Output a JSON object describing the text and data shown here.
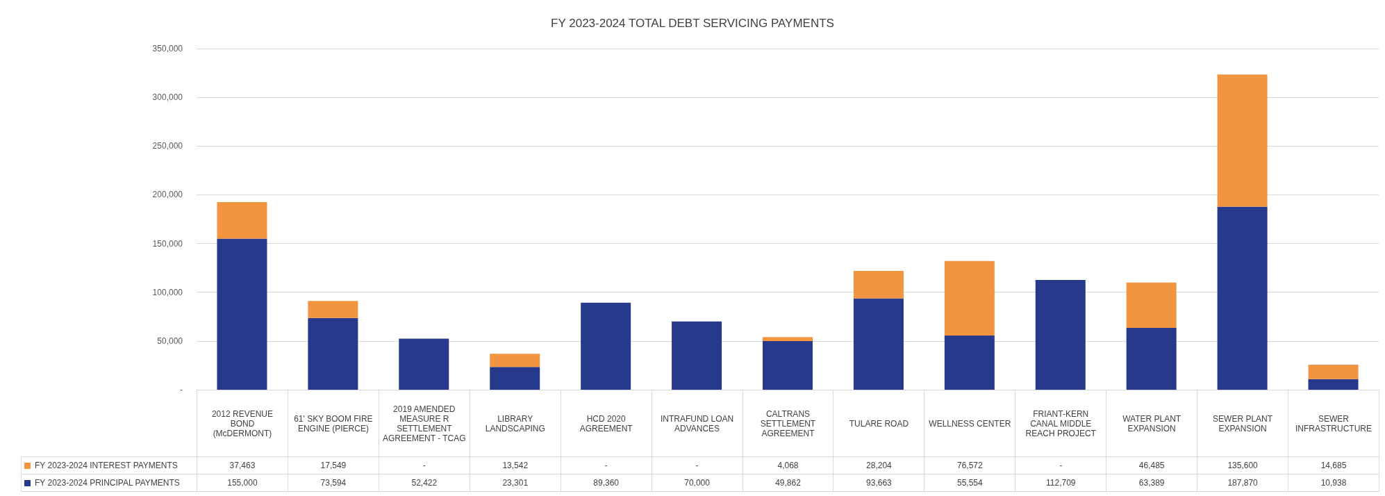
{
  "chart_data": {
    "type": "bar",
    "title": "FY 2023-2024 TOTAL DEBT SERVICING PAYMENTS",
    "categories": [
      "2012 REVENUE BOND (McDERMONT)",
      "61' SKY BOOM FIRE ENGINE (PIERCE)",
      "2019 AMENDED MEASURE R SETTLEMENT AGREEMENT - TCAG",
      "LIBRARY LANDSCAPING",
      "HCD 2020 AGREEMENT",
      "INTRAFUND LOAN ADVANCES",
      "CALTRANS SETTLEMENT AGREEMENT",
      "TULARE ROAD",
      "WELLNESS CENTER",
      "FRIANT-KERN CANAL MIDDLE REACH PROJECT",
      "WATER PLANT EXPANSION",
      "SEWER PLANT EXPANSION",
      "SEWER INFRASTRUCTURE"
    ],
    "stacked": true,
    "series": [
      {
        "name": "FY 2023-2024 PRINCIPAL PAYMENTS",
        "color": "#26398a",
        "values": [
          155000,
          73594,
          52422,
          23301,
          89360,
          70000,
          49862,
          93663,
          55554,
          112709,
          63389,
          187870,
          10938
        ],
        "value_labels": [
          "155,000",
          "73,594",
          "52,422",
          "23,301",
          "89,360",
          "70,000",
          "49,862",
          "93,663",
          "55,554",
          "112,709",
          "63,389",
          "187,870",
          "10,938"
        ]
      },
      {
        "name": "FY 2023-2024 INTEREST PAYMENTS",
        "color": "#f29541",
        "values": [
          37463,
          17549,
          0,
          13542,
          0,
          0,
          4068,
          28204,
          76572,
          0,
          46485,
          135600,
          14685
        ],
        "value_labels": [
          "37,463",
          "17,549",
          "-",
          "13,542",
          "-",
          "-",
          "4,068",
          "28,204",
          "76,572",
          "-",
          "46,485",
          "135,600",
          "14,685"
        ]
      }
    ],
    "ylim": [
      0,
      350000
    ],
    "yticks": [
      {
        "value": 0,
        "label": "-"
      },
      {
        "value": 50000,
        "label": "50,000"
      },
      {
        "value": 100000,
        "label": "100,000"
      },
      {
        "value": 150000,
        "label": "150,000"
      },
      {
        "value": 200000,
        "label": "200,000"
      },
      {
        "value": 250000,
        "label": "250,000"
      },
      {
        "value": 300000,
        "label": "300,000"
      },
      {
        "value": 350000,
        "label": "350,000"
      }
    ],
    "grid": "y",
    "legend": "bottom"
  }
}
